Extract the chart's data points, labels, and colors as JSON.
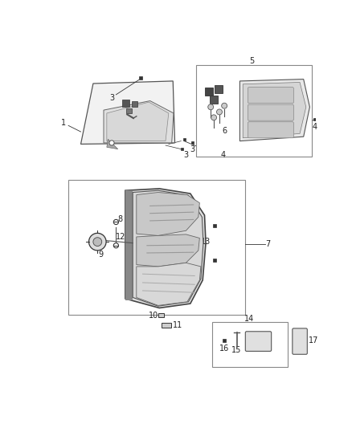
{
  "background_color": "#ffffff",
  "fig_width": 4.38,
  "fig_height": 5.33,
  "dpi": 100,
  "label_fontsize": 7,
  "line_color": "#333333",
  "box_edge_color": "#aaaaaa"
}
